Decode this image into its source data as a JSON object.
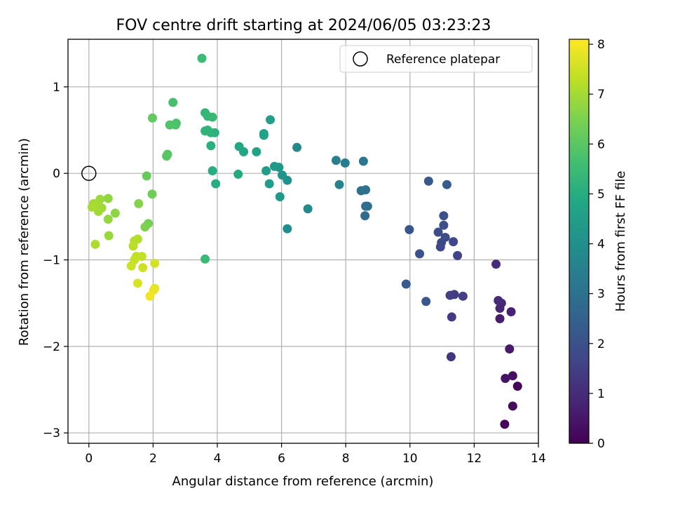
{
  "chart_data": {
    "type": "scatter",
    "title": "FOV centre drift starting at 2024/06/05 03:23:23",
    "xlabel": "Angular distance from reference (arcmin)",
    "ylabel": "Rotation from reference (arcmin)",
    "xlim": [
      -0.65,
      14.0
    ],
    "ylim": [
      -3.12,
      1.55
    ],
    "xticks": [
      0,
      2,
      4,
      6,
      8,
      10,
      12,
      14
    ],
    "yticks": [
      -3,
      -2,
      -1,
      0,
      1
    ],
    "xtick_labels": [
      "0",
      "2",
      "4",
      "6",
      "8",
      "10",
      "12",
      "14"
    ],
    "ytick_labels": [
      "−3",
      "−2",
      "−1",
      "0",
      "1"
    ],
    "grid": true,
    "legend": {
      "placement": "top-right",
      "entries": [
        {
          "label": "Reference platepar",
          "marker": "open-circle"
        }
      ]
    },
    "reference_point": {
      "x": 0,
      "y": 0
    },
    "colorbar": {
      "label": "Hours from first FF file",
      "colormap": "viridis",
      "range": [
        0,
        8.1
      ],
      "ticks": [
        0,
        1,
        2,
        3,
        4,
        5,
        6,
        7,
        8
      ],
      "tick_labels": [
        "0",
        "1",
        "2",
        "3",
        "4",
        "5",
        "6",
        "7",
        "8"
      ]
    },
    "points": [
      {
        "x": 13.35,
        "y": -2.46,
        "c": 0.05
      },
      {
        "x": 12.95,
        "y": -2.9,
        "c": 0.15
      },
      {
        "x": 13.2,
        "y": -2.69,
        "c": 0.25
      },
      {
        "x": 13.2,
        "y": -2.34,
        "c": 0.35
      },
      {
        "x": 12.97,
        "y": -2.37,
        "c": 0.45
      },
      {
        "x": 13.1,
        "y": -2.03,
        "c": 0.55
      },
      {
        "x": 12.8,
        "y": -1.68,
        "c": 0.65
      },
      {
        "x": 13.15,
        "y": -1.6,
        "c": 0.75
      },
      {
        "x": 12.8,
        "y": -1.56,
        "c": 0.85
      },
      {
        "x": 12.85,
        "y": -1.5,
        "c": 0.9
      },
      {
        "x": 12.75,
        "y": -1.47,
        "c": 0.95
      },
      {
        "x": 12.68,
        "y": -1.05,
        "c": 1.05
      },
      {
        "x": 11.28,
        "y": -2.12,
        "c": 1.3
      },
      {
        "x": 11.3,
        "y": -1.66,
        "c": 1.4
      },
      {
        "x": 11.38,
        "y": -1.4,
        "c": 1.45
      },
      {
        "x": 11.25,
        "y": -1.41,
        "c": 1.5
      },
      {
        "x": 11.65,
        "y": -1.42,
        "c": 1.55
      },
      {
        "x": 11.48,
        "y": -0.95,
        "c": 1.65
      },
      {
        "x": 11.35,
        "y": -0.79,
        "c": 1.7
      },
      {
        "x": 10.95,
        "y": -0.85,
        "c": 1.75
      },
      {
        "x": 10.98,
        "y": -0.8,
        "c": 1.8
      },
      {
        "x": 11.1,
        "y": -0.74,
        "c": 1.85
      },
      {
        "x": 10.88,
        "y": -0.68,
        "c": 1.9
      },
      {
        "x": 11.05,
        "y": -0.6,
        "c": 1.95
      },
      {
        "x": 11.05,
        "y": -0.49,
        "c": 2.0
      },
      {
        "x": 10.3,
        "y": -0.93,
        "c": 2.05
      },
      {
        "x": 9.98,
        "y": -0.65,
        "c": 2.15
      },
      {
        "x": 10.5,
        "y": -1.48,
        "c": 2.2
      },
      {
        "x": 9.88,
        "y": -1.28,
        "c": 2.3
      },
      {
        "x": 10.58,
        "y": -0.09,
        "c": 2.25
      },
      {
        "x": 11.15,
        "y": -0.13,
        "c": 2.35
      },
      {
        "x": 8.6,
        "y": -0.49,
        "c": 2.8
      },
      {
        "x": 8.62,
        "y": -0.38,
        "c": 2.9
      },
      {
        "x": 8.68,
        "y": -0.38,
        "c": 2.95
      },
      {
        "x": 8.48,
        "y": -0.2,
        "c": 3.0
      },
      {
        "x": 8.62,
        "y": -0.19,
        "c": 3.05
      },
      {
        "x": 8.55,
        "y": 0.14,
        "c": 3.15
      },
      {
        "x": 7.98,
        "y": 0.12,
        "c": 3.35
      },
      {
        "x": 7.7,
        "y": 0.15,
        "c": 3.45
      },
      {
        "x": 7.8,
        "y": -0.13,
        "c": 3.55
      },
      {
        "x": 6.48,
        "y": 0.3,
        "c": 3.75
      },
      {
        "x": 6.82,
        "y": -0.41,
        "c": 3.85
      },
      {
        "x": 6.18,
        "y": -0.64,
        "c": 3.95
      },
      {
        "x": 6.18,
        "y": -0.08,
        "c": 4.05
      },
      {
        "x": 6.02,
        "y": -0.02,
        "c": 4.15
      },
      {
        "x": 5.92,
        "y": 0.07,
        "c": 4.25
      },
      {
        "x": 5.78,
        "y": 0.08,
        "c": 4.3
      },
      {
        "x": 5.95,
        "y": -0.27,
        "c": 4.35
      },
      {
        "x": 5.62,
        "y": -0.12,
        "c": 4.45
      },
      {
        "x": 5.52,
        "y": 0.03,
        "c": 4.5
      },
      {
        "x": 5.65,
        "y": 0.62,
        "c": 4.55
      },
      {
        "x": 5.45,
        "y": 0.46,
        "c": 4.6
      },
      {
        "x": 5.45,
        "y": 0.44,
        "c": 4.65
      },
      {
        "x": 5.22,
        "y": 0.25,
        "c": 4.7
      },
      {
        "x": 4.82,
        "y": 0.25,
        "c": 4.8
      },
      {
        "x": 4.68,
        "y": 0.31,
        "c": 4.85
      },
      {
        "x": 4.65,
        "y": -0.01,
        "c": 4.9
      },
      {
        "x": 3.95,
        "y": -0.12,
        "c": 5.0
      },
      {
        "x": 3.85,
        "y": 0.03,
        "c": 5.05
      },
      {
        "x": 3.8,
        "y": 0.32,
        "c": 5.1
      },
      {
        "x": 3.92,
        "y": 0.47,
        "c": 5.15
      },
      {
        "x": 3.8,
        "y": 0.47,
        "c": 5.2
      },
      {
        "x": 3.7,
        "y": 0.5,
        "c": 5.25
      },
      {
        "x": 3.62,
        "y": 0.49,
        "c": 5.25
      },
      {
        "x": 3.62,
        "y": 0.7,
        "c": 5.3
      },
      {
        "x": 3.7,
        "y": 0.66,
        "c": 5.35
      },
      {
        "x": 3.85,
        "y": 0.65,
        "c": 5.4
      },
      {
        "x": 3.62,
        "y": -0.99,
        "c": 5.45
      },
      {
        "x": 3.52,
        "y": 1.33,
        "c": 5.5
      },
      {
        "x": 2.62,
        "y": 0.82,
        "c": 5.7
      },
      {
        "x": 2.72,
        "y": 0.58,
        "c": 5.75
      },
      {
        "x": 2.7,
        "y": 0.56,
        "c": 5.8
      },
      {
        "x": 2.52,
        "y": 0.56,
        "c": 5.85
      },
      {
        "x": 2.45,
        "y": 0.22,
        "c": 5.9
      },
      {
        "x": 2.42,
        "y": 0.2,
        "c": 5.95
      },
      {
        "x": 1.98,
        "y": 0.64,
        "c": 6.1
      },
      {
        "x": 1.8,
        "y": -0.03,
        "c": 6.2
      },
      {
        "x": 1.97,
        "y": -0.24,
        "c": 6.3
      },
      {
        "x": 1.85,
        "y": -0.58,
        "c": 6.4
      },
      {
        "x": 1.75,
        "y": -0.62,
        "c": 6.5
      },
      {
        "x": 1.55,
        "y": -0.35,
        "c": 6.6
      },
      {
        "x": 0.82,
        "y": -0.46,
        "c": 6.7
      },
      {
        "x": 0.6,
        "y": -0.29,
        "c": 6.75
      },
      {
        "x": 0.6,
        "y": -0.53,
        "c": 6.8
      },
      {
        "x": 0.62,
        "y": -0.72,
        "c": 6.85
      },
      {
        "x": 0.4,
        "y": -0.4,
        "c": 6.9
      },
      {
        "x": 0.35,
        "y": -0.3,
        "c": 6.9
      },
      {
        "x": 0.3,
        "y": -0.44,
        "c": 6.95
      },
      {
        "x": 0.28,
        "y": -0.38,
        "c": 7.0
      },
      {
        "x": 0.15,
        "y": -0.35,
        "c": 7.0
      },
      {
        "x": 0.1,
        "y": -0.39,
        "c": 7.05
      },
      {
        "x": 0.2,
        "y": -0.82,
        "c": 7.1
      },
      {
        "x": 1.52,
        "y": -0.76,
        "c": 7.15
      },
      {
        "x": 1.42,
        "y": -0.78,
        "c": 7.2
      },
      {
        "x": 1.38,
        "y": -0.84,
        "c": 7.25
      },
      {
        "x": 1.48,
        "y": -0.96,
        "c": 7.3
      },
      {
        "x": 1.65,
        "y": -0.96,
        "c": 7.35
      },
      {
        "x": 1.42,
        "y": -1.0,
        "c": 7.4
      },
      {
        "x": 1.32,
        "y": -1.07,
        "c": 7.45
      },
      {
        "x": 1.68,
        "y": -1.09,
        "c": 7.5
      },
      {
        "x": 2.05,
        "y": -1.04,
        "c": 7.55
      },
      {
        "x": 1.52,
        "y": -1.27,
        "c": 7.65
      },
      {
        "x": 2.05,
        "y": -1.33,
        "c": 7.75
      },
      {
        "x": 2.02,
        "y": -1.35,
        "c": 7.85
      },
      {
        "x": 1.9,
        "y": -1.42,
        "c": 7.95
      }
    ]
  }
}
